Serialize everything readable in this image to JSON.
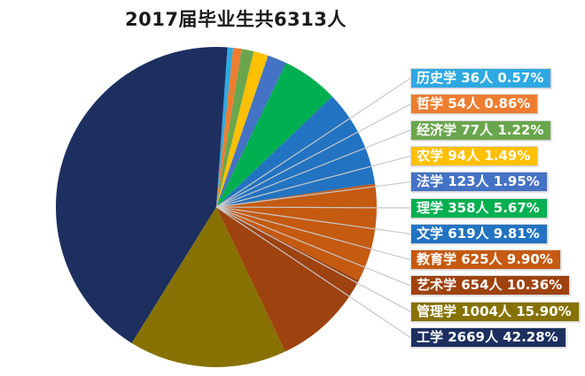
{
  "title": "2017届毕业生共6313人",
  "style": {
    "background": "#FFFFFF",
    "title_color": "#1A1A1A",
    "leader_line_color": "#C8C8C8",
    "label_border_color": "#D6D6D6",
    "label_text_color": "#FFFFFF"
  },
  "chart_data": {
    "type": "pie",
    "title": "2017届毕业生共6313人",
    "total": 6313,
    "unit": "人",
    "legend_position": "right-data-labels",
    "start_angle_deg": 4,
    "grid": false,
    "categories": [
      "历史学",
      "哲学",
      "经济学",
      "农学",
      "法学",
      "理学",
      "文学",
      "教育学",
      "艺术学",
      "管理学",
      "工学"
    ],
    "values": [
      36,
      54,
      77,
      94,
      123,
      358,
      619,
      625,
      654,
      1004,
      2669
    ],
    "percent_labels": [
      "0.57%",
      "0.86%",
      "1.22%",
      "1.49%",
      "1.95%",
      "5.67%",
      "9.81%",
      "9.90%",
      "10.36%",
      "15.90%",
      "42.28%"
    ],
    "colors": [
      "#2EA9E2",
      "#ED7D31",
      "#6AA64D",
      "#FFC000",
      "#4472C4",
      "#00B050",
      "#2273C2",
      "#C55A11",
      "#9E420F",
      "#877201",
      "#1C2F5F"
    ],
    "labels": [
      "历史学 36人 0.57%",
      "哲学 54人 0.86%",
      "经济学 77人 1.22%",
      "农学 94人 1.49%",
      "法学 123人 1.95%",
      "理学 358人 5.67%",
      "文学 619人 9.81%",
      "教育学 625人 9.90%",
      "艺术学 654人 10.36%",
      "管理学 1004人 15.90%",
      "工学 2669人 42.28%"
    ]
  }
}
